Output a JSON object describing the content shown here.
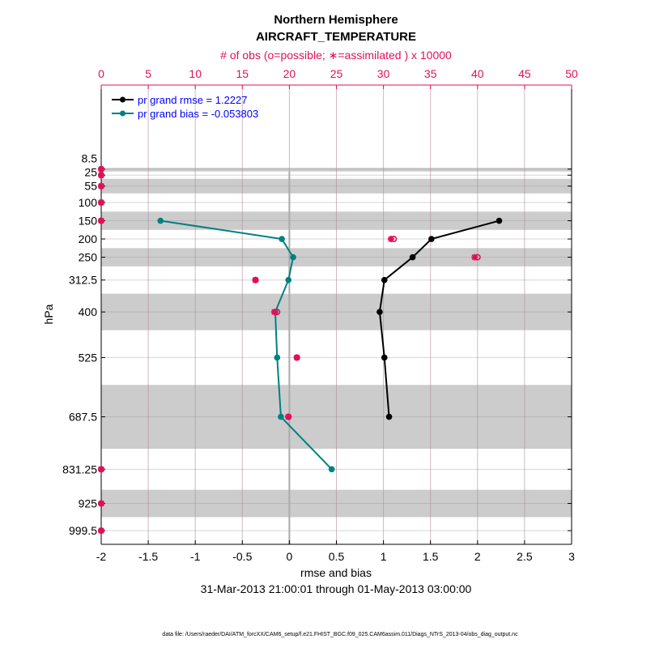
{
  "chart_data": {
    "type": "line",
    "title": "Northern Hemisphere",
    "subtitle": "AIRCRAFT_TEMPERATURE",
    "top_xlabel": "# of obs (o=possible; ∗=assimilated ) x 10000",
    "xlabel": "rmse and bias",
    "ylabel": "hPa",
    "date_range": "31-Mar-2013 21:00:01 through 01-May-2013 03:00:00",
    "footer": "data file: /Users/raeder/DAI/ATM_forcXX/CAM6_setup/f.e21.FHIST_BGC.f09_025.CAM6assim.011/Diags_NTrS_2013-04/obs_diag_output.nc",
    "xlim": [
      -2,
      3
    ],
    "xticks": [
      "-2",
      "-1.5",
      "-1",
      "-0.5",
      "0",
      "0.5",
      "1",
      "1.5",
      "2",
      "2.5",
      "3"
    ],
    "top_xlim": [
      0,
      50
    ],
    "top_xticks": [
      "0",
      "5",
      "10",
      "15",
      "20",
      "25",
      "30",
      "35",
      "40",
      "45",
      "50"
    ],
    "ylim": [
      -222,
      1037
    ],
    "y_reversed": true,
    "levels": [
      8.5,
      25,
      55,
      100,
      150,
      200,
      250,
      312.5,
      400,
      525,
      687.5,
      831.25,
      925,
      999.5
    ],
    "ytick_labels": [
      "8.5",
      "25",
      "55",
      "100",
      "150",
      "200",
      "250",
      "312.5",
      "400",
      "525",
      "687.5",
      "831.25",
      "925",
      "999.5"
    ],
    "layer_bands": [
      [
        5,
        15
      ],
      [
        35,
        75
      ],
      [
        125,
        175
      ],
      [
        225,
        275
      ],
      [
        350,
        450
      ],
      [
        600,
        775
      ],
      [
        887.5,
        962.5
      ]
    ],
    "grid": true,
    "legend_position": "top-left",
    "series": [
      {
        "name": "pr grand rmse = 1.2227",
        "color": "#000000",
        "levels": [
          150,
          200,
          250,
          312.5,
          400,
          525,
          687.5
        ],
        "values": [
          2.23,
          1.51,
          1.31,
          1.01,
          0.96,
          1.01,
          1.06
        ]
      },
      {
        "name": "pr grand bias = -0.053803",
        "color": "#008080",
        "levels": [
          150,
          200,
          250,
          312.5,
          400,
          525,
          687.5,
          831.25
        ],
        "values": [
          -1.37,
          -0.08,
          0.04,
          -0.01,
          -0.15,
          -0.13,
          -0.09,
          0.45
        ]
      }
    ],
    "obs_counts": {
      "color": "#e0105a",
      "levels": [
        8.5,
        25,
        55,
        100,
        150,
        200,
        250,
        312.5,
        400,
        525,
        687.5,
        831.25,
        925,
        999.5
      ],
      "possible": [
        0,
        0,
        0,
        0,
        0,
        31.1,
        40.0,
        16.4,
        18.7,
        20.8,
        19.9,
        0,
        0,
        0
      ],
      "assimilated": [
        0,
        0,
        0,
        0,
        0,
        30.8,
        39.7,
        16.4,
        18.4,
        20.8,
        19.9,
        0,
        0,
        0
      ]
    }
  }
}
